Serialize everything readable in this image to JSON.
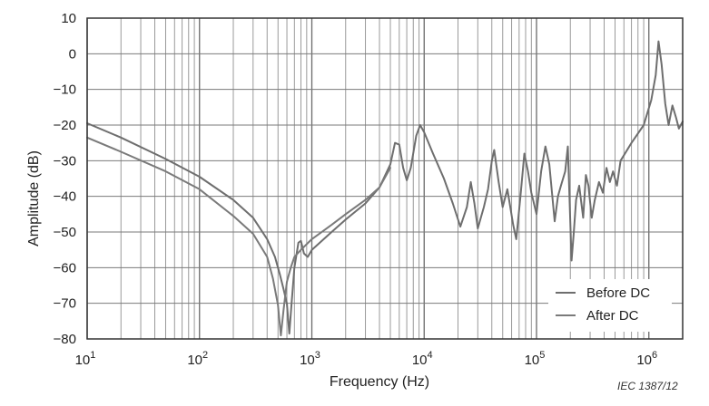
{
  "chart_data": {
    "type": "line",
    "title": "",
    "xlabel": "Frequency  (Hz)",
    "ylabel": "Amplitude  (dB)",
    "x_scale": "log",
    "xlim": [
      10,
      2000000
    ],
    "ylim": [
      -80,
      10
    ],
    "yticks": [
      10,
      0,
      -10,
      -20,
      -30,
      -40,
      -50,
      -60,
      -70,
      -80
    ],
    "xticks": [
      {
        "value": 10,
        "base": "10",
        "exp": "1"
      },
      {
        "value": 100,
        "base": "10",
        "exp": "2"
      },
      {
        "value": 1000,
        "base": "10",
        "exp": "3"
      },
      {
        "value": 10000,
        "base": "10",
        "exp": "4"
      },
      {
        "value": 100000,
        "base": "10",
        "exp": "5"
      },
      {
        "value": 1000000,
        "base": "10",
        "exp": "6"
      }
    ],
    "grid": true,
    "legend_position": "bottom-right",
    "credit": "IEC  1387/12",
    "series": [
      {
        "name": "Before DC",
        "color": "#6e6e6e",
        "points": [
          [
            10,
            -19.5
          ],
          [
            20,
            -23.5
          ],
          [
            50,
            -29.5
          ],
          [
            100,
            -34.5
          ],
          [
            200,
            -41
          ],
          [
            300,
            -46
          ],
          [
            400,
            -52
          ],
          [
            470,
            -57
          ],
          [
            520,
            -62
          ],
          [
            560,
            -66
          ],
          [
            600,
            -70
          ],
          [
            630,
            -78.5
          ],
          [
            660,
            -70
          ],
          [
            700,
            -60
          ],
          [
            760,
            -53
          ],
          [
            800,
            -52.5
          ],
          [
            850,
            -56
          ],
          [
            920,
            -57
          ],
          [
            1000,
            -55
          ],
          [
            1500,
            -50
          ],
          [
            2000,
            -46.5
          ],
          [
            3000,
            -42
          ],
          [
            4000,
            -37.5
          ],
          [
            5000,
            -31
          ],
          [
            5500,
            -25
          ],
          [
            6000,
            -25.5
          ],
          [
            6500,
            -32
          ],
          [
            7000,
            -35.5
          ],
          [
            7600,
            -32
          ],
          [
            8500,
            -23
          ],
          [
            9200,
            -20
          ],
          [
            10000,
            -22
          ],
          [
            12000,
            -28
          ],
          [
            15000,
            -35
          ],
          [
            18000,
            -42
          ],
          [
            21000,
            -48.5
          ],
          [
            24000,
            -43
          ],
          [
            26000,
            -36
          ],
          [
            28000,
            -42
          ],
          [
            30000,
            -49
          ],
          [
            34000,
            -43
          ],
          [
            37000,
            -38
          ],
          [
            40000,
            -30
          ],
          [
            42000,
            -27
          ],
          [
            46000,
            -36
          ],
          [
            50000,
            -43
          ],
          [
            55000,
            -38
          ],
          [
            62000,
            -48
          ],
          [
            66000,
            -52
          ],
          [
            72000,
            -40
          ],
          [
            78000,
            -28
          ],
          [
            84000,
            -33
          ],
          [
            90000,
            -39
          ],
          [
            100000,
            -45
          ],
          [
            110000,
            -33
          ],
          [
            120000,
            -26
          ],
          [
            130000,
            -31
          ],
          [
            145000,
            -47
          ],
          [
            155000,
            -40
          ],
          [
            165000,
            -37
          ],
          [
            180000,
            -33
          ],
          [
            190000,
            -26
          ],
          [
            205000,
            -58
          ],
          [
            215000,
            -50
          ],
          [
            225000,
            -41
          ],
          [
            240000,
            -37
          ],
          [
            260000,
            -46
          ],
          [
            275000,
            -34
          ],
          [
            290000,
            -37
          ],
          [
            310000,
            -46
          ],
          [
            330000,
            -41
          ],
          [
            360000,
            -36
          ],
          [
            390000,
            -39
          ],
          [
            420000,
            -32
          ],
          [
            450000,
            -36
          ],
          [
            480000,
            -33
          ],
          [
            520000,
            -37
          ],
          [
            560000,
            -30
          ],
          [
            700000,
            -25
          ],
          [
            900000,
            -20
          ],
          [
            1050000,
            -13
          ],
          [
            1150000,
            -6
          ],
          [
            1220000,
            3.5
          ],
          [
            1300000,
            -3
          ],
          [
            1400000,
            -14
          ],
          [
            1500000,
            -20
          ],
          [
            1620000,
            -14.5
          ],
          [
            1750000,
            -18
          ],
          [
            1850000,
            -21
          ],
          [
            2000000,
            -19
          ]
        ]
      },
      {
        "name": "After DC",
        "color": "#7a7a7a",
        "points": [
          [
            10,
            -23.5
          ],
          [
            20,
            -27.5
          ],
          [
            50,
            -33
          ],
          [
            100,
            -38
          ],
          [
            200,
            -45.5
          ],
          [
            300,
            -50.5
          ],
          [
            400,
            -57
          ],
          [
            450,
            -63
          ],
          [
            500,
            -70.5
          ],
          [
            530,
            -79
          ],
          [
            560,
            -72
          ],
          [
            600,
            -64
          ],
          [
            650,
            -60
          ],
          [
            700,
            -57
          ],
          [
            800,
            -55
          ],
          [
            1000,
            -52
          ],
          [
            1500,
            -48
          ],
          [
            2000,
            -45
          ],
          [
            3000,
            -41
          ],
          [
            4000,
            -37.5
          ],
          [
            5000,
            -32
          ]
        ]
      }
    ]
  }
}
